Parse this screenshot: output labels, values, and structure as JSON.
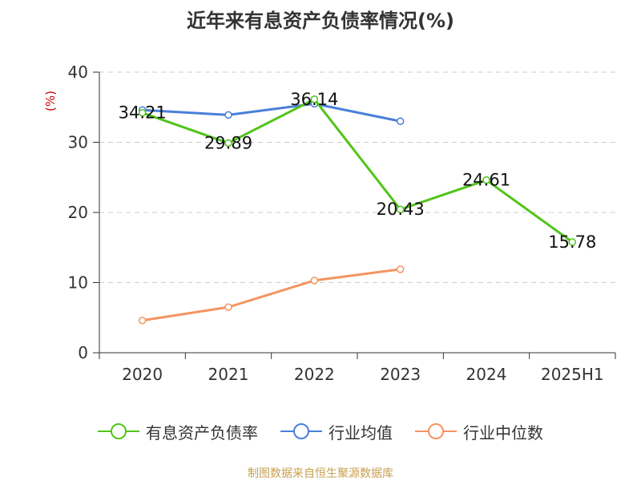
{
  "chart_data": {
    "type": "line",
    "title": "近年来有息资产负债率情况(%)",
    "ylabel": "(%)",
    "categories": [
      "2020",
      "2021",
      "2022",
      "2023",
      "2024",
      "2025H1"
    ],
    "ylim": [
      0,
      40
    ],
    "yticks": [
      0,
      10,
      20,
      30,
      40
    ],
    "grid": true,
    "legend_position": "bottom",
    "series": [
      {
        "name": "有息资产负债率",
        "color": "#52c41a",
        "values": [
          34.21,
          29.89,
          36.14,
          20.43,
          24.61,
          15.78
        ],
        "labels": [
          "34.21",
          "29.89",
          "36.14",
          "20.43",
          "24.61",
          "15.78"
        ]
      },
      {
        "name": "行业均值",
        "color": "#4a7fd9",
        "values": [
          34.6,
          33.9,
          35.5,
          33.0,
          null,
          null
        ]
      },
      {
        "name": "行业中位数",
        "color": "#f59460",
        "values": [
          4.6,
          6.5,
          10.3,
          11.9,
          null,
          null
        ]
      }
    ]
  },
  "source": "制图数据来自恒生聚源数据库"
}
